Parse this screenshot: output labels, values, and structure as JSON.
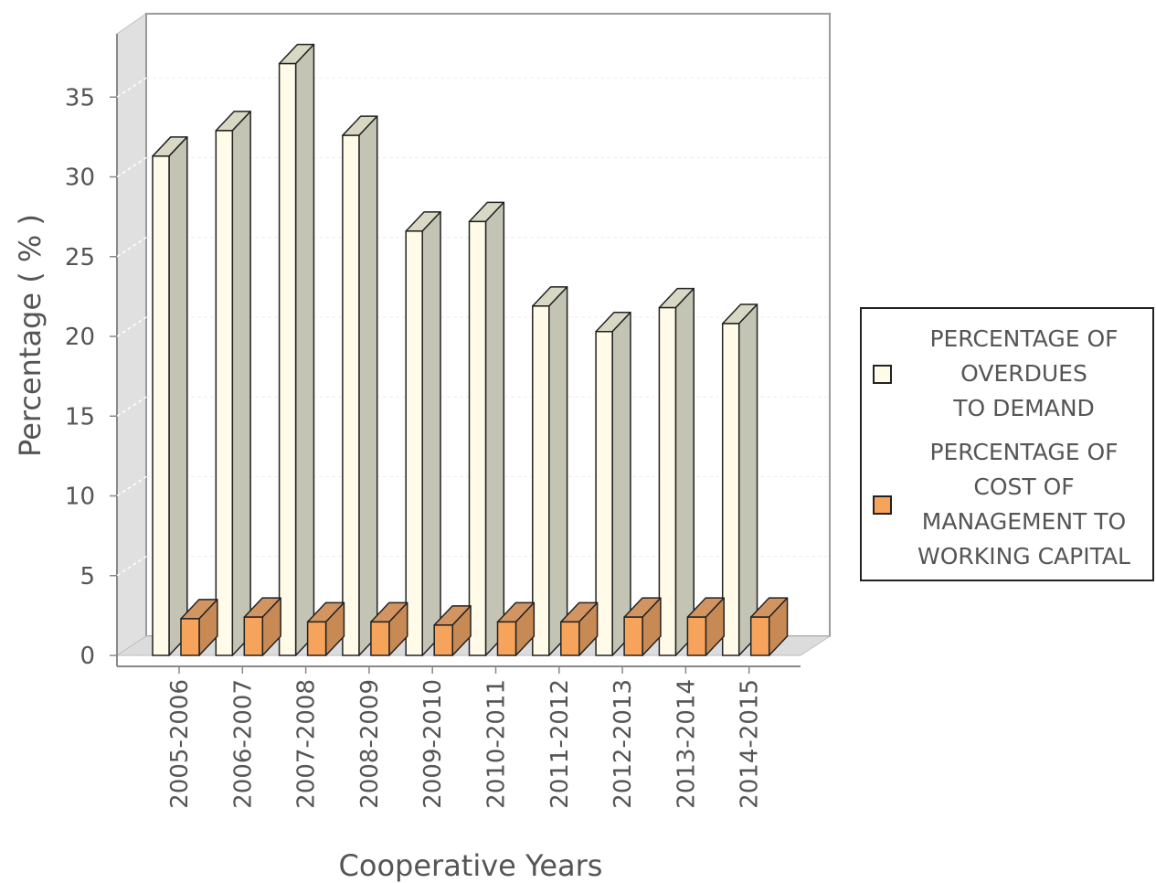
{
  "chart_data": {
    "type": "bar",
    "xlabel": "Cooperative Years",
    "ylabel": "Percentage ( % )",
    "ylim": [
      0,
      38
    ],
    "yticks": [
      0,
      5,
      10,
      15,
      20,
      25,
      30,
      35
    ],
    "categories": [
      "2005-2006",
      "2006-2007",
      "2007-2008",
      "2008-2009",
      "2009-2010",
      "2010-2011",
      "2011-2012",
      "2012-2013",
      "2013-2014",
      "2014-2015"
    ],
    "series": [
      {
        "name": "PERCENTAGE OF\nOVERDUES\nTO DEMAND",
        "color": "#fffbe8",
        "values": [
          31.3,
          32.9,
          37.1,
          32.6,
          26.6,
          27.2,
          21.9,
          20.3,
          21.8,
          20.8
        ]
      },
      {
        "name": "PERCENTAGE OF\nCOST OF\nMANAGEMENT TO\nWORKING CAPITAL",
        "color": "#f6a35c",
        "values": [
          2.3,
          2.4,
          2.1,
          2.1,
          1.9,
          2.1,
          2.1,
          2.4,
          2.4,
          2.4
        ]
      }
    ],
    "grid": true,
    "legend_position": "right",
    "style": "3d"
  }
}
